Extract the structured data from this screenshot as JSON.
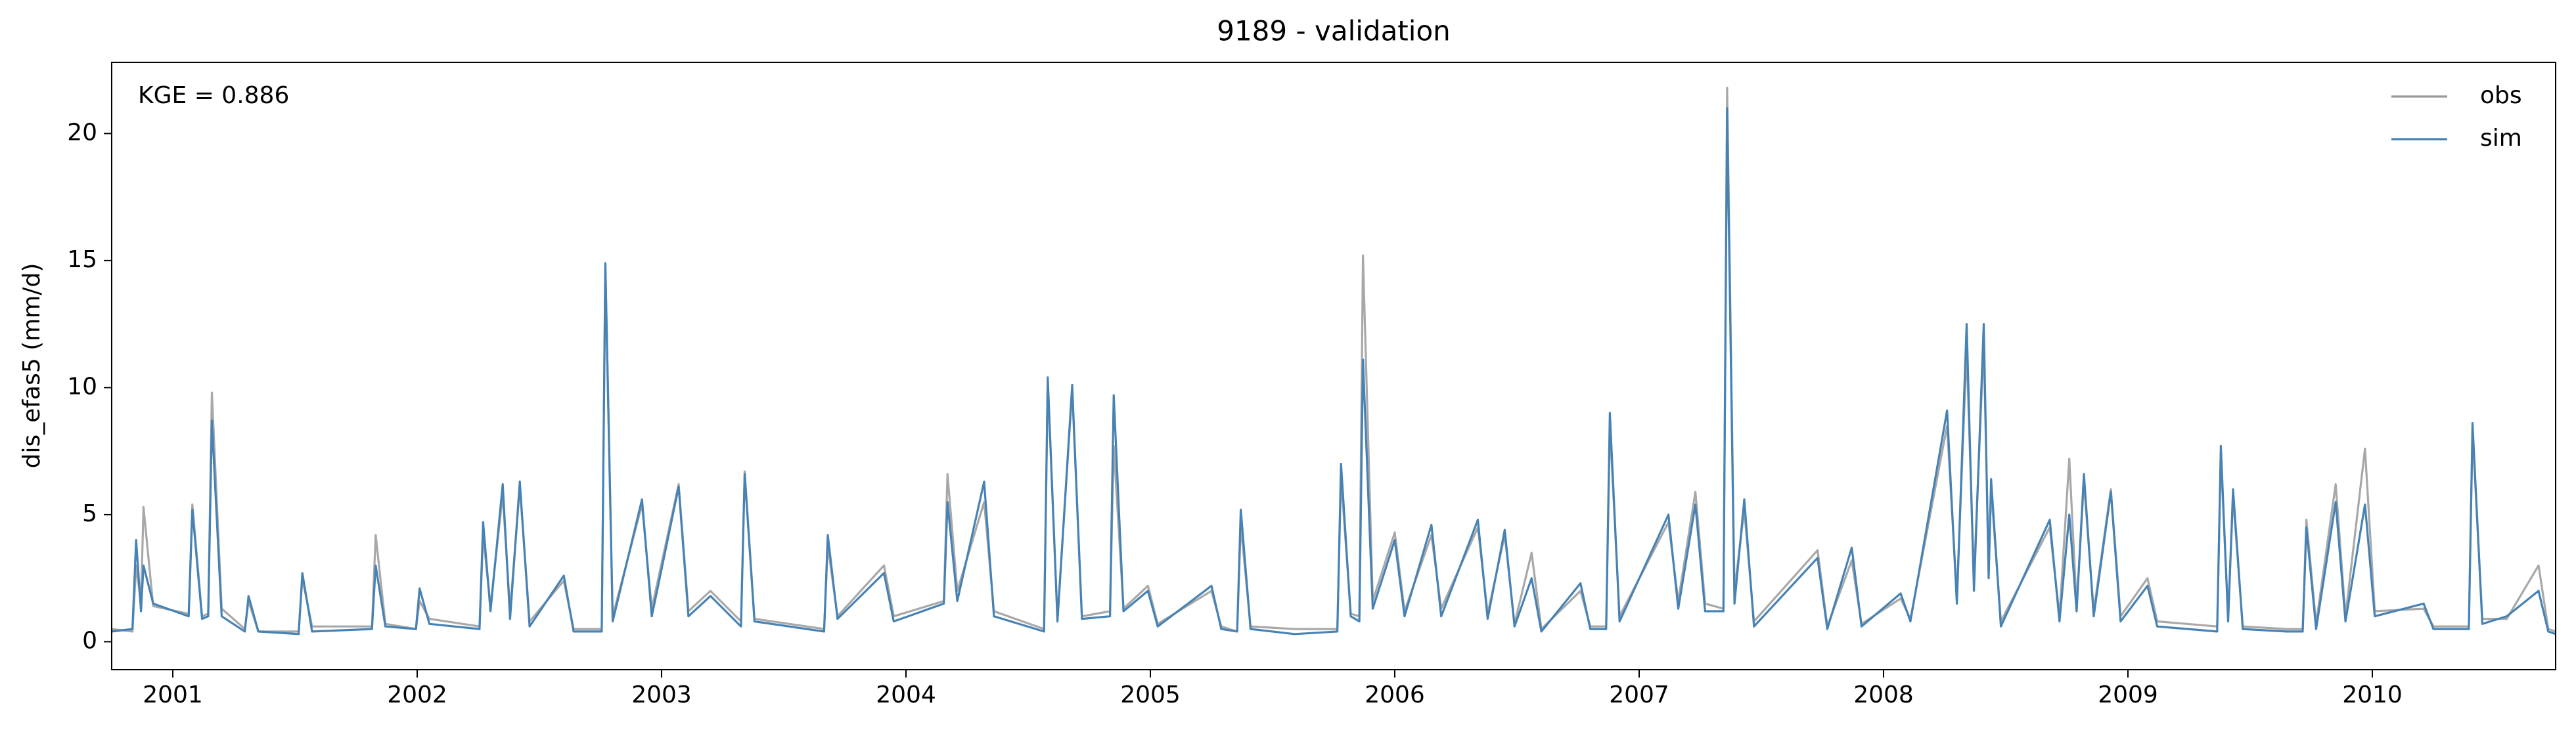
{
  "chart_data": {
    "type": "line",
    "title": "9189 - validation",
    "ylabel": "dis_efas5 (mm/d)",
    "annotation": "KGE = 0.886",
    "legend": "upper right",
    "xlim": [
      2000.75,
      2010.75
    ],
    "xticks": [
      2001,
      2002,
      2003,
      2004,
      2005,
      2006,
      2007,
      2008,
      2009,
      2010
    ],
    "ylim": [
      -1.1,
      22.8
    ],
    "yticks": [
      0,
      5,
      10,
      15,
      20
    ],
    "x": [
      2000.75,
      2000.835,
      2000.85,
      2000.87,
      2000.88,
      2000.92,
      2001.065,
      2001.08,
      2001.12,
      2001.145,
      2001.16,
      2001.2,
      2001.295,
      2001.31,
      2001.35,
      2001.515,
      2001.53,
      2001.57,
      2001.815,
      2001.83,
      2001.87,
      2001.995,
      2002.01,
      2002.05,
      2002.255,
      2002.27,
      2002.3,
      2002.35,
      2002.38,
      2002.42,
      2002.46,
      2002.6,
      2002.64,
      2002.755,
      2002.77,
      2002.8,
      2002.92,
      2002.96,
      2003.07,
      2003.11,
      2003.2,
      2003.325,
      2003.34,
      2003.38,
      2003.665,
      2003.68,
      2003.72,
      2003.91,
      2003.95,
      2004.155,
      2004.17,
      2004.21,
      2004.32,
      2004.36,
      2004.565,
      2004.58,
      2004.62,
      2004.68,
      2004.72,
      2004.835,
      2004.85,
      2004.89,
      2004.99,
      2005.03,
      2005.25,
      2005.29,
      2005.355,
      2005.37,
      2005.41,
      2005.59,
      2005.765,
      2005.78,
      2005.82,
      2005.855,
      2005.87,
      2005.91,
      2006.0,
      2006.04,
      2006.15,
      2006.19,
      2006.34,
      2006.38,
      2006.45,
      2006.49,
      2006.56,
      2006.6,
      2006.76,
      2006.8,
      2006.865,
      2006.88,
      2006.92,
      2007.12,
      2007.16,
      2007.23,
      2007.27,
      2007.345,
      2007.36,
      2007.39,
      2007.43,
      2007.47,
      2007.73,
      2007.77,
      2007.87,
      2007.91,
      2008.07,
      2008.11,
      2008.26,
      2008.3,
      2008.34,
      2008.37,
      2008.41,
      2008.43,
      2008.44,
      2008.48,
      2008.68,
      2008.72,
      2008.76,
      2008.79,
      2008.82,
      2008.86,
      2008.93,
      2008.97,
      2009.08,
      2009.12,
      2009.365,
      2009.38,
      2009.41,
      2009.43,
      2009.47,
      2009.65,
      2009.715,
      2009.73,
      2009.77,
      2009.85,
      2009.89,
      2009.97,
      2010.01,
      2010.21,
      2010.25,
      2010.395,
      2010.41,
      2010.45,
      2010.55,
      2010.68,
      2010.72,
      2010.75
    ],
    "series": [
      {
        "name": "obs",
        "color": "#999999",
        "values": [
          0.5,
          0.4,
          3.0,
          1.5,
          5.3,
          1.4,
          1.1,
          5.4,
          1.0,
          1.1,
          9.8,
          1.3,
          0.5,
          1.6,
          0.4,
          0.4,
          2.5,
          0.6,
          0.6,
          4.2,
          0.7,
          0.5,
          1.6,
          0.9,
          0.6,
          4.2,
          1.4,
          5.8,
          1.2,
          6.1,
          0.8,
          2.4,
          0.5,
          0.5,
          14.8,
          1.0,
          5.4,
          1.3,
          6.2,
          1.2,
          2.0,
          0.8,
          6.7,
          0.9,
          0.5,
          3.8,
          1.0,
          3.0,
          1.0,
          1.6,
          6.6,
          2.0,
          5.5,
          1.2,
          0.5,
          10.3,
          0.9,
          9.9,
          1.0,
          1.2,
          7.7,
          1.3,
          2.2,
          0.7,
          2.0,
          0.6,
          0.4,
          4.6,
          0.6,
          0.5,
          0.5,
          6.5,
          1.1,
          1.0,
          15.2,
          1.6,
          4.3,
          1.2,
          4.2,
          1.3,
          4.5,
          1.1,
          4.2,
          0.7,
          3.5,
          0.5,
          2.0,
          0.6,
          0.6,
          8.5,
          1.0,
          4.7,
          1.6,
          5.9,
          1.5,
          1.3,
          21.8,
          2.0,
          5.2,
          0.8,
          3.6,
          0.6,
          3.2,
          0.7,
          1.7,
          0.9,
          8.5,
          1.8,
          11.5,
          2.5,
          11.8,
          2.8,
          6.0,
          0.8,
          4.5,
          1.0,
          7.2,
          1.4,
          6.3,
          1.2,
          6.0,
          1.0,
          2.5,
          0.8,
          0.6,
          7.3,
          1.0,
          5.7,
          0.6,
          0.5,
          0.5,
          4.8,
          0.7,
          6.2,
          1.0,
          7.6,
          1.2,
          1.3,
          0.6,
          0.6,
          8.3,
          0.9,
          0.9,
          3.0,
          0.5,
          0.4
        ]
      },
      {
        "name": "sim",
        "color": "#4682b4",
        "values": [
          0.4,
          0.5,
          4.0,
          1.2,
          3.0,
          1.5,
          1.0,
          5.2,
          0.9,
          1.0,
          8.7,
          1.0,
          0.4,
          1.8,
          0.4,
          0.3,
          2.7,
          0.4,
          0.5,
          3.0,
          0.6,
          0.5,
          2.1,
          0.7,
          0.5,
          4.7,
          1.2,
          6.2,
          0.9,
          6.3,
          0.6,
          2.6,
          0.4,
          0.4,
          14.9,
          0.8,
          5.6,
          1.0,
          6.1,
          1.0,
          1.8,
          0.6,
          6.6,
          0.8,
          0.4,
          4.2,
          0.9,
          2.7,
          0.8,
          1.5,
          5.5,
          1.6,
          6.3,
          1.0,
          0.4,
          10.4,
          0.8,
          10.1,
          0.9,
          1.0,
          9.7,
          1.2,
          2.0,
          0.6,
          2.2,
          0.5,
          0.4,
          5.2,
          0.5,
          0.3,
          0.4,
          7.0,
          1.0,
          0.8,
          11.1,
          1.3,
          4.0,
          1.0,
          4.6,
          1.0,
          4.8,
          0.9,
          4.4,
          0.6,
          2.5,
          0.4,
          2.3,
          0.5,
          0.5,
          9.0,
          0.8,
          5.0,
          1.3,
          5.4,
          1.2,
          1.2,
          21.0,
          1.5,
          5.6,
          0.6,
          3.3,
          0.5,
          3.7,
          0.6,
          1.9,
          0.8,
          9.1,
          1.5,
          12.5,
          2.0,
          12.5,
          2.5,
          6.4,
          0.6,
          4.8,
          0.8,
          5.0,
          1.2,
          6.6,
          1.0,
          5.9,
          0.8,
          2.2,
          0.6,
          0.4,
          7.7,
          0.8,
          6.0,
          0.5,
          0.4,
          0.4,
          4.5,
          0.5,
          5.5,
          0.8,
          5.4,
          1.0,
          1.5,
          0.5,
          0.5,
          8.6,
          0.7,
          1.0,
          2.0,
          0.4,
          0.3
        ]
      }
    ]
  }
}
